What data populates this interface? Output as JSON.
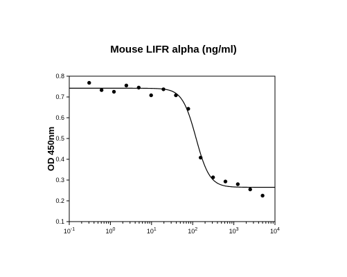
{
  "chart_data": {
    "type": "scatter",
    "title": "Mouse LIFR alpha (ng/ml)",
    "xlabel": "",
    "ylabel": "OD 450nm",
    "xscale": "log",
    "xlim": [
      0.1,
      10000
    ],
    "ylim": [
      0.1,
      0.8
    ],
    "x_tick_labels": [
      {
        "base": "10",
        "exp": "-1"
      },
      {
        "base": "10",
        "exp": "0"
      },
      {
        "base": "10",
        "exp": "1"
      },
      {
        "base": "10",
        "exp": "2"
      },
      {
        "base": "10",
        "exp": "3"
      },
      {
        "base": "10",
        "exp": "4"
      }
    ],
    "y_tick_labels": [
      "0.1",
      "0.2",
      "0.3",
      "0.4",
      "0.5",
      "0.6",
      "0.7",
      "0.8"
    ],
    "grid": false,
    "legend": "none",
    "series": [
      {
        "kind": "points",
        "x": [
          0.305,
          0.61,
          1.22,
          2.44,
          4.88,
          9.77,
          19.5,
          39.1,
          78.1,
          156,
          313,
          625,
          1250,
          2500,
          5000
        ],
        "y": [
          0.768,
          0.733,
          0.725,
          0.755,
          0.745,
          0.708,
          0.737,
          0.708,
          0.643,
          0.408,
          0.313,
          0.293,
          0.28,
          0.255,
          0.225
        ]
      },
      {
        "kind": "fit-curve",
        "model": "4PL",
        "top": 0.742,
        "bottom": 0.265,
        "ec50": 120,
        "hill": 2.6
      }
    ],
    "colors": {
      "points": "#000000",
      "curve": "#000000",
      "axes": "#000000"
    }
  }
}
